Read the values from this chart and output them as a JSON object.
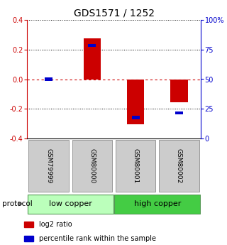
{
  "title": "GDS1571 / 1252",
  "samples": [
    "GSM79999",
    "GSM80000",
    "GSM80001",
    "GSM80002"
  ],
  "log2_ratios": [
    0.0,
    0.275,
    -0.305,
    -0.155
  ],
  "percentile_ranks": [
    0.5,
    0.785,
    0.175,
    0.215
  ],
  "ylim": [
    -0.4,
    0.4
  ],
  "yticks_left": [
    -0.4,
    -0.2,
    0.0,
    0.2,
    0.4
  ],
  "yticks_right": [
    0,
    25,
    50,
    75,
    100
  ],
  "groups": [
    {
      "label": "low copper",
      "samples": [
        0,
        1
      ],
      "color": "#bbffbb"
    },
    {
      "label": "high copper",
      "samples": [
        2,
        3
      ],
      "color": "#44cc44"
    }
  ],
  "bar_color_red": "#cc0000",
  "bar_color_blue": "#0000cc",
  "bar_width": 0.4,
  "blue_bar_width": 0.18,
  "blue_bar_height": 0.022,
  "background_color": "#ffffff",
  "plot_bg": "#ffffff",
  "zero_line_color": "#cc0000",
  "title_fontsize": 10,
  "tick_fontsize": 7,
  "label_fontsize": 8,
  "legend_fontsize": 7,
  "sample_box_color": "#cccccc",
  "sample_box_edge": "#999999"
}
